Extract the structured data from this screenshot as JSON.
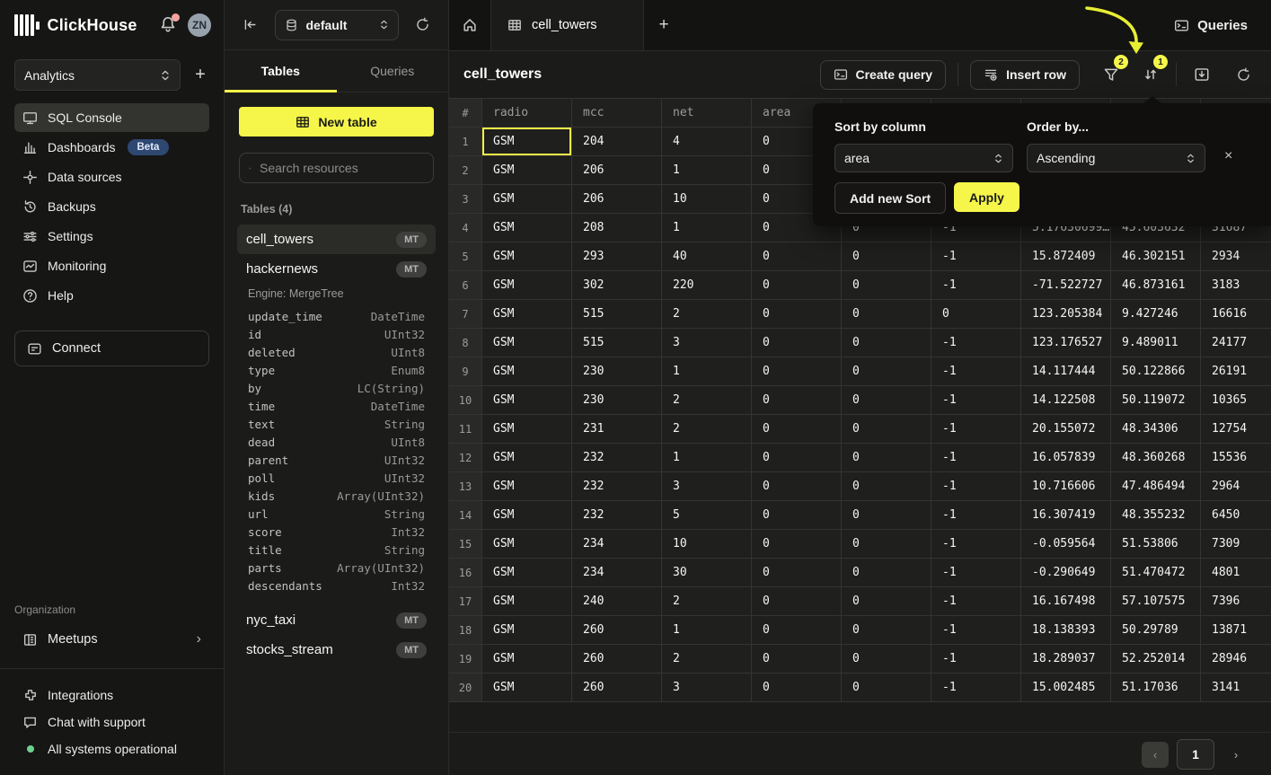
{
  "app": {
    "brand": "ClickHouse",
    "workspace": "Analytics",
    "avatar_initials": "ZN",
    "queries_label": "Queries"
  },
  "sidebar": {
    "nav": [
      {
        "label": "SQL Console",
        "icon": "console-icon",
        "active": true
      },
      {
        "label": "Dashboards",
        "icon": "dashboards-icon",
        "badge": "Beta"
      },
      {
        "label": "Data sources",
        "icon": "data-sources-icon"
      },
      {
        "label": "Backups",
        "icon": "backups-icon"
      },
      {
        "label": "Settings",
        "icon": "settings-icon"
      },
      {
        "label": "Monitoring",
        "icon": "monitoring-icon"
      },
      {
        "label": "Help",
        "icon": "help-icon"
      }
    ],
    "connect_label": "Connect",
    "organization": {
      "label": "Organization",
      "items": [
        {
          "label": "Meetups",
          "icon": "meetups-icon"
        }
      ]
    },
    "footer": [
      {
        "label": "Integrations",
        "icon": "integrations-icon"
      },
      {
        "label": "Chat with support",
        "icon": "chat-icon"
      },
      {
        "label": "All systems operational",
        "icon": "status-dot-icon"
      }
    ]
  },
  "explorer": {
    "database": "default",
    "tabs": [
      {
        "label": "Tables",
        "active": true
      },
      {
        "label": "Queries",
        "active": false
      }
    ],
    "new_table_label": "New table",
    "search_placeholder": "Search resources",
    "section_label": "Tables (4)",
    "tables": [
      {
        "name": "cell_towers",
        "badge": "MT",
        "active": true
      },
      {
        "name": "hackernews",
        "badge": "MT",
        "engine": "Engine: MergeTree",
        "columns": [
          [
            "update_time",
            "DateTime"
          ],
          [
            "id",
            "UInt32"
          ],
          [
            "deleted",
            "UInt8"
          ],
          [
            "type",
            "Enum8"
          ],
          [
            "by",
            "LC(String)"
          ],
          [
            "time",
            "DateTime"
          ],
          [
            "text",
            "String"
          ],
          [
            "dead",
            "UInt8"
          ],
          [
            "parent",
            "UInt32"
          ],
          [
            "poll",
            "UInt32"
          ],
          [
            "kids",
            "Array(UInt32)"
          ],
          [
            "url",
            "String"
          ],
          [
            "score",
            "Int32"
          ],
          [
            "title",
            "String"
          ],
          [
            "parts",
            "Array(UInt32)"
          ],
          [
            "descendants",
            "Int32"
          ]
        ]
      },
      {
        "name": "nyc_taxi",
        "badge": "MT"
      },
      {
        "name": "stocks_stream",
        "badge": "MT"
      }
    ]
  },
  "main": {
    "active_tab": "cell_towers",
    "title": "cell_towers",
    "toolbar": {
      "create_query": "Create query",
      "insert_row": "Insert row",
      "filter_badge": "2",
      "sort_badge": "1"
    },
    "table": {
      "headers": [
        "#",
        "radio",
        "mcc",
        "net",
        "area",
        "",
        "",
        "",
        "",
        ""
      ],
      "selected_cell": {
        "row_index": 0,
        "col_index": 1
      },
      "rows": [
        [
          "1",
          "GSM",
          "204",
          "4",
          "0",
          "",
          "",
          "",
          "",
          ""
        ],
        [
          "2",
          "GSM",
          "206",
          "1",
          "0",
          "",
          "",
          "",
          "",
          ""
        ],
        [
          "3",
          "GSM",
          "206",
          "10",
          "0",
          "",
          "",
          "",
          "",
          ""
        ],
        [
          "4",
          "GSM",
          "208",
          "1",
          "0",
          "0",
          "-1",
          "5.17630699…",
          "45.603632",
          "31687"
        ],
        [
          "5",
          "GSM",
          "293",
          "40",
          "0",
          "0",
          "-1",
          "15.872409",
          "46.302151",
          "2934"
        ],
        [
          "6",
          "GSM",
          "302",
          "220",
          "0",
          "0",
          "-1",
          "-71.522727",
          "46.873161",
          "3183"
        ],
        [
          "7",
          "GSM",
          "515",
          "2",
          "0",
          "0",
          "0",
          "123.205384",
          "9.427246",
          "16616"
        ],
        [
          "8",
          "GSM",
          "515",
          "3",
          "0",
          "0",
          "-1",
          "123.176527",
          "9.489011",
          "24177"
        ],
        [
          "9",
          "GSM",
          "230",
          "1",
          "0",
          "0",
          "-1",
          "14.117444",
          "50.122866",
          "26191"
        ],
        [
          "10",
          "GSM",
          "230",
          "2",
          "0",
          "0",
          "-1",
          "14.122508",
          "50.119072",
          "10365"
        ],
        [
          "11",
          "GSM",
          "231",
          "2",
          "0",
          "0",
          "-1",
          "20.155072",
          "48.34306",
          "12754"
        ],
        [
          "12",
          "GSM",
          "232",
          "1",
          "0",
          "0",
          "-1",
          "16.057839",
          "48.360268",
          "15536"
        ],
        [
          "13",
          "GSM",
          "232",
          "3",
          "0",
          "0",
          "-1",
          "10.716606",
          "47.486494",
          "2964"
        ],
        [
          "14",
          "GSM",
          "232",
          "5",
          "0",
          "0",
          "-1",
          "16.307419",
          "48.355232",
          "6450"
        ],
        [
          "15",
          "GSM",
          "234",
          "10",
          "0",
          "0",
          "-1",
          "-0.059564",
          "51.53806",
          "7309"
        ],
        [
          "16",
          "GSM",
          "234",
          "30",
          "0",
          "0",
          "-1",
          "-0.290649",
          "51.470472",
          "4801"
        ],
        [
          "17",
          "GSM",
          "240",
          "2",
          "0",
          "0",
          "-1",
          "16.167498",
          "57.107575",
          "7396"
        ],
        [
          "18",
          "GSM",
          "260",
          "1",
          "0",
          "0",
          "-1",
          "18.138393",
          "50.29789",
          "13871"
        ],
        [
          "19",
          "GSM",
          "260",
          "2",
          "0",
          "0",
          "-1",
          "18.289037",
          "52.252014",
          "28946"
        ],
        [
          "20",
          "GSM",
          "260",
          "3",
          "0",
          "0",
          "-1",
          "15.002485",
          "51.17036",
          "3141"
        ]
      ]
    },
    "pagination": {
      "page": "1",
      "prev": "‹",
      "next": "›"
    }
  },
  "sort_popup": {
    "column_label": "Sort by column",
    "column_value": "area",
    "order_label": "Order by...",
    "order_value": "Ascending",
    "add_button": "Add new Sort",
    "apply_button": "Apply",
    "close": "×"
  },
  "colors": {
    "accent_yellow": "#f5f649",
    "beta_blue": "#2f4872",
    "status_green": "#6fcf8f",
    "notification_pink": "#f2a3a0"
  }
}
